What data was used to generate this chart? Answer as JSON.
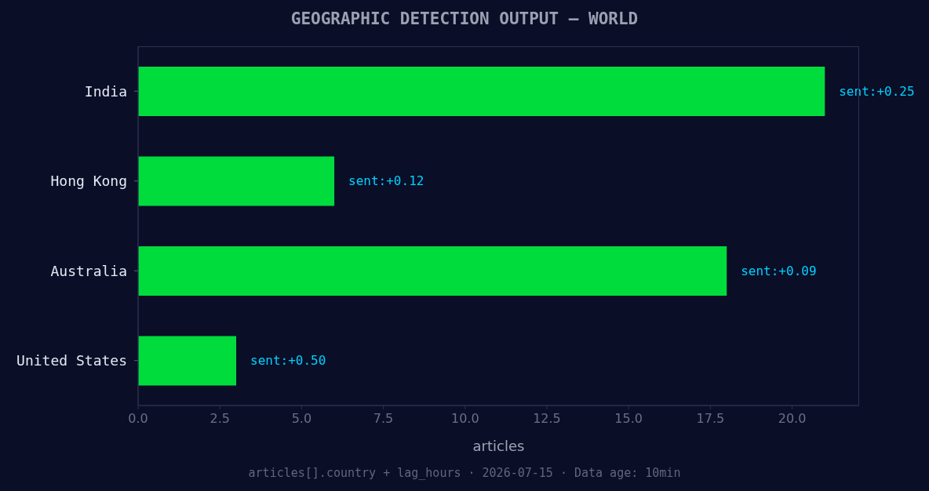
{
  "chart_data": {
    "type": "bar",
    "orientation": "horizontal",
    "title": "GEOGRAPHIC DETECTION OUTPUT — WORLD",
    "xlabel": "articles",
    "categories": [
      "India",
      "Hong Kong",
      "Australia",
      "United States"
    ],
    "values": [
      21,
      6,
      18,
      3
    ],
    "color": "#00dc3c",
    "xlim": [
      0,
      22.05
    ],
    "xticks": [
      {
        "value": 0,
        "label": "0.0"
      },
      {
        "value": 2.5,
        "label": "2.5"
      },
      {
        "value": 5,
        "label": "5.0"
      },
      {
        "value": 7.5,
        "label": "7.5"
      },
      {
        "value": 10,
        "label": "10.0"
      },
      {
        "value": 12.5,
        "label": "12.5"
      },
      {
        "value": 15,
        "label": "15.0"
      },
      {
        "value": 17.5,
        "label": "17.5"
      },
      {
        "value": 20,
        "label": "20.0"
      }
    ],
    "annotations": [
      {
        "text": "sent:+0.25",
        "x": 21,
        "y": "India"
      },
      {
        "text": "sent:+0.12",
        "x": 6,
        "y": "Hong Kong"
      },
      {
        "text": "sent:+0.09",
        "x": 18,
        "y": "Australia"
      },
      {
        "text": "sent:+0.50",
        "x": 3,
        "y": "United States"
      },
      "articles[].country + lag_hours · 2026-07-15 · Data age: 10min"
    ]
  }
}
